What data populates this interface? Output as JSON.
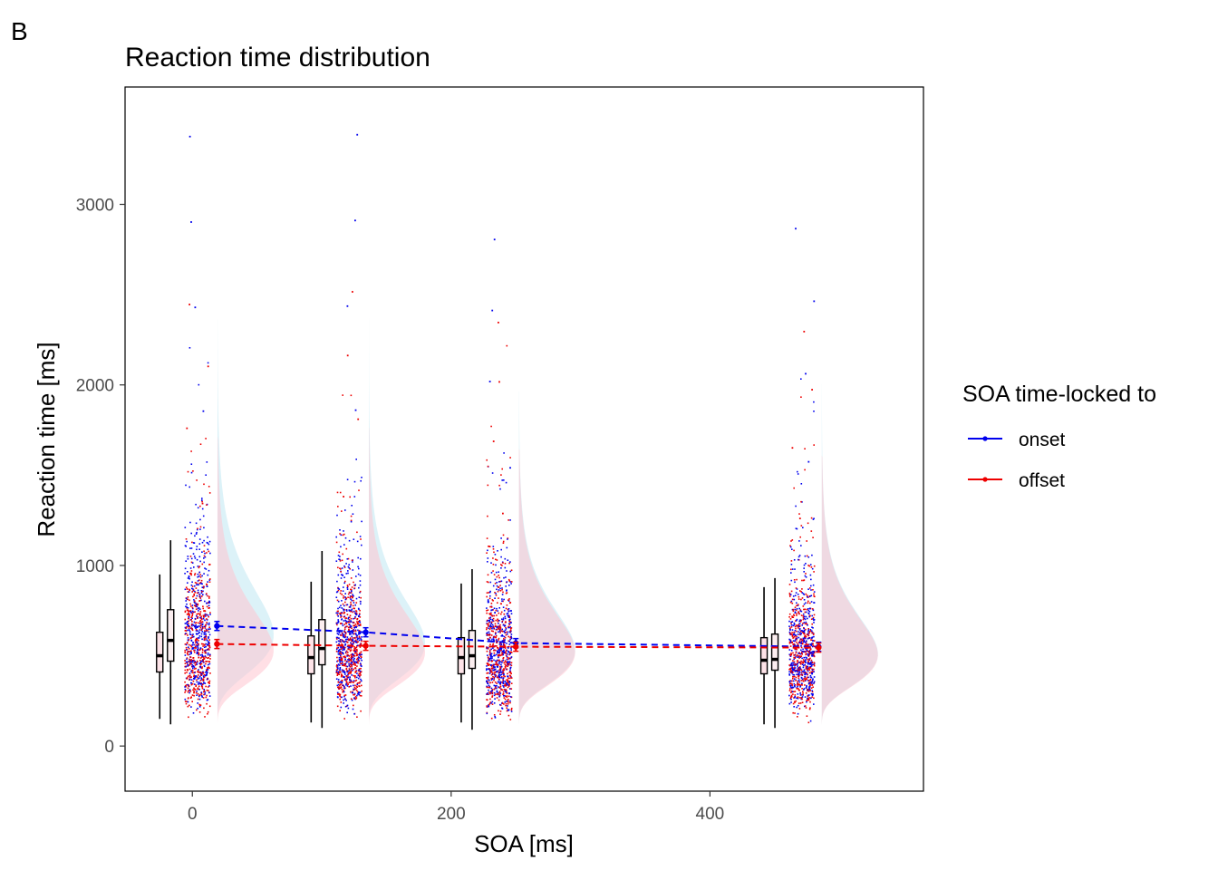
{
  "panel_label": "B",
  "chart_data": {
    "type": "scatter",
    "title": "Reaction time distribution",
    "xlabel": "SOA [ms]",
    "ylabel": "Reaction time [ms]",
    "xlim": [
      -52,
      565
    ],
    "ylim": [
      -250,
      3650
    ],
    "x_ticks": [
      0,
      200,
      400
    ],
    "y_ticks": [
      0,
      1000,
      2000,
      3000
    ],
    "grid": false,
    "legend": {
      "title": "SOA time-locked to",
      "position": "right",
      "entries": [
        {
          "label": "onset",
          "color": "#0000ee"
        },
        {
          "label": "offset",
          "color": "#ee0000"
        }
      ]
    },
    "soa_levels": [
      0,
      117,
      233,
      467
    ],
    "series": [
      {
        "name": "onset",
        "color": "#0000ee",
        "fill": "#bfe8f2",
        "mean_x": [
          19,
          134,
          250,
          484
        ],
        "mean_rt": [
          665,
          630,
          570,
          550
        ],
        "box": [
          {
            "soa": 0,
            "min": 120,
            "q1": 470,
            "median": 585,
            "q3": 755,
            "max": 1140
          },
          {
            "soa": 117,
            "min": 100,
            "q1": 450,
            "median": 540,
            "q3": 700,
            "max": 1080
          },
          {
            "soa": 233,
            "min": 90,
            "q1": 430,
            "median": 500,
            "q3": 640,
            "max": 980
          },
          {
            "soa": 467,
            "min": 100,
            "q1": 420,
            "median": 480,
            "q3": 620,
            "max": 930
          }
        ],
        "max_rt": [
          3380,
          3390,
          2810,
          2870
        ]
      },
      {
        "name": "offset",
        "color": "#ee0000",
        "fill": "#ffc4d0",
        "mean_x": [
          19,
          134,
          250,
          484
        ],
        "mean_rt": [
          565,
          555,
          550,
          545
        ],
        "box": [
          {
            "soa": 0,
            "min": 150,
            "q1": 410,
            "median": 500,
            "q3": 630,
            "max": 950
          },
          {
            "soa": 117,
            "min": 130,
            "q1": 400,
            "median": 490,
            "q3": 610,
            "max": 910
          },
          {
            "soa": 233,
            "min": 130,
            "q1": 400,
            "median": 490,
            "q3": 600,
            "max": 900
          },
          {
            "soa": 467,
            "min": 120,
            "q1": 400,
            "median": 475,
            "q3": 600,
            "max": 880
          }
        ],
        "max_rt": [
          2450,
          2520,
          2350,
          2300
        ]
      }
    ]
  }
}
